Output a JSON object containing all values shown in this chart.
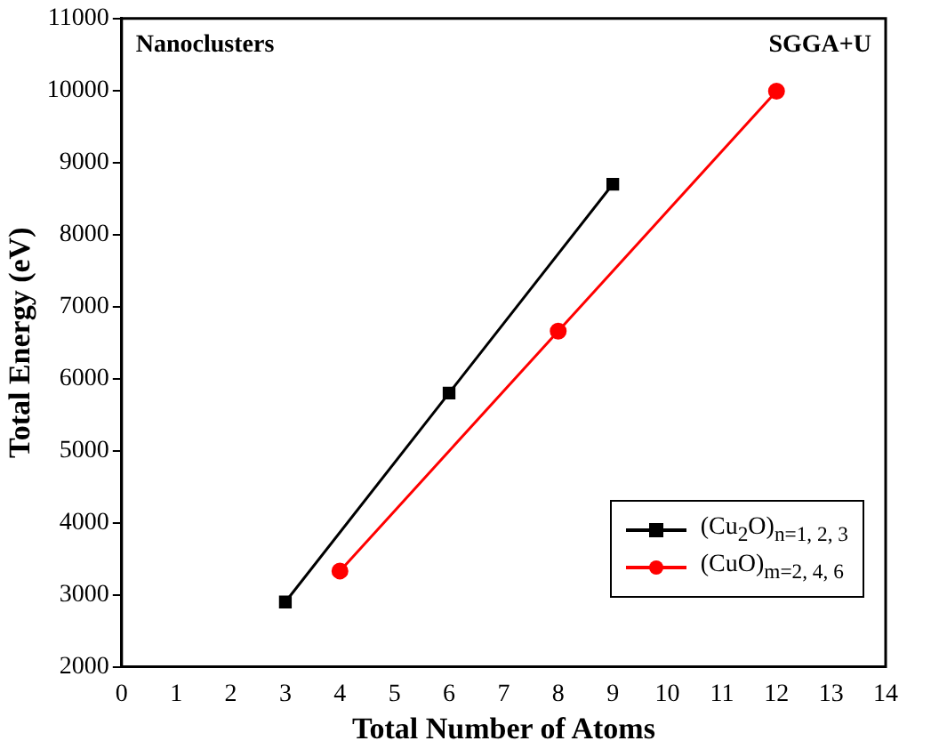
{
  "chart_data": {
    "type": "line",
    "xlabel": "Total Number of Atoms",
    "ylabel": "Total Energy (eV)",
    "annotations": [
      "Nanoclusters",
      "SGGA+U"
    ],
    "series": [
      {
        "name": "(Cu$_{2}$O)$_{n=1, 2, 3}$",
        "color": "#000000",
        "marker": "square",
        "x": [
          3,
          6,
          9
        ],
        "values": [
          2900,
          5800,
          8700
        ]
      },
      {
        "name": "(CuO)$_{m=2, 4, 6}$",
        "color": "#ff0000",
        "marker": "circle",
        "x": [
          4,
          8,
          12
        ],
        "values": [
          3330,
          6660,
          9990
        ]
      }
    ],
    "xlim": [
      0,
      14
    ],
    "xticks": [
      0,
      1,
      2,
      3,
      4,
      5,
      6,
      7,
      8,
      9,
      10,
      11,
      12,
      13,
      14
    ],
    "ylim": [
      2000,
      11000
    ],
    "yticks": [
      2000,
      3000,
      4000,
      5000,
      6000,
      7000,
      8000,
      9000,
      10000,
      11000
    ],
    "grid": false,
    "legend": "bottom right",
    "line_style": "solid"
  }
}
